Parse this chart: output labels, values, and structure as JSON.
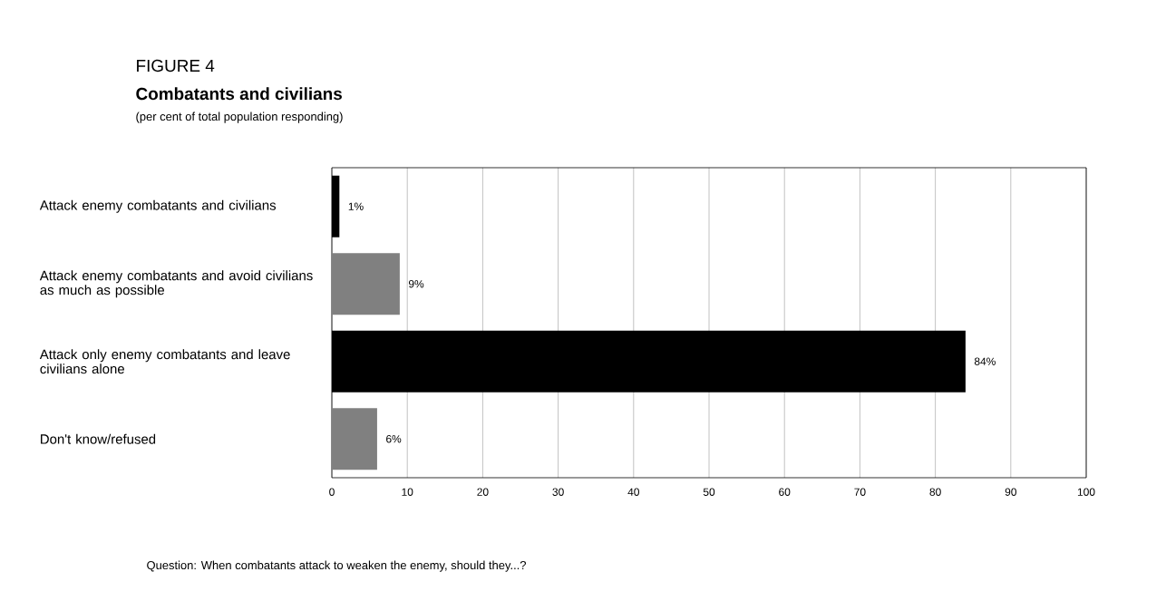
{
  "chart_data": {
    "type": "bar",
    "orientation": "horizontal",
    "title": "Combatants and civilians",
    "subtitle": "(per cent of total population responding)",
    "annotations": [
      "FIGURE 4",
      "Question: When combatants attack to weaken the enemy, should they...?"
    ],
    "categories": [
      "Attack enemy combatants and civilians",
      "Attack enemy combatants and avoid civilians as much as possible",
      "Attack only enemy combatants and leave civilians alone",
      "Don't know/refused"
    ],
    "values": [
      1,
      9,
      84,
      6
    ],
    "colors": [
      "#000000",
      "#808080",
      "#000000",
      "#808080"
    ],
    "value_labels": [
      "1%",
      "9%",
      "84%",
      "6%"
    ],
    "xlim": [
      0,
      100
    ],
    "xticks": [
      0,
      10,
      20,
      30,
      40,
      50,
      60,
      70,
      80,
      90,
      100
    ],
    "grid": "x"
  }
}
